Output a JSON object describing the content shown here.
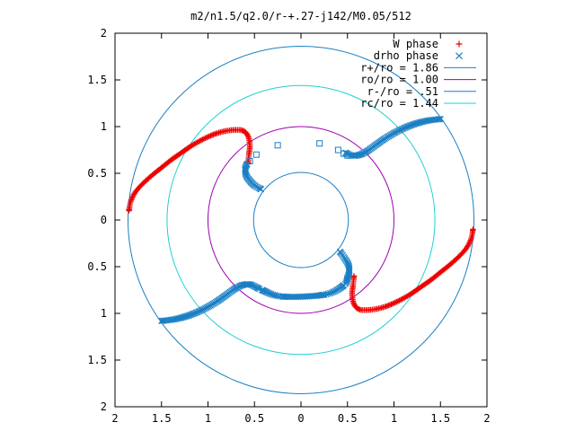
{
  "chart_data": {
    "type": "scatter",
    "title": "m2/n1.5/q2.0/r-+.27-j142/M0.05/512",
    "xlim": [
      -2,
      2
    ],
    "ylim": [
      -2,
      2
    ],
    "x_tick_values": [
      -2,
      -1.5,
      -1,
      -0.5,
      0,
      0.5,
      1,
      1.5,
      2
    ],
    "x_tick_labels": [
      "2",
      "1.5",
      "1",
      "0.5",
      "0",
      "0.5",
      "1",
      "1.5",
      "2"
    ],
    "y_tick_values": [
      2,
      1.5,
      1,
      0.5,
      0,
      -0.5,
      -1,
      -1.5,
      -2
    ],
    "y_tick_labels": [
      "2",
      "1.5",
      "1",
      "0.5",
      "0",
      "0.5",
      "1",
      "1.5",
      "2"
    ],
    "grid": false,
    "legend_position": "top-right",
    "circles": [
      {
        "label": "r+/ro = 1.86",
        "radius": 1.86,
        "color": "#1a7fc4"
      },
      {
        "label": "ro/ro = 1.00",
        "radius": 1.0,
        "color": "#a000b0"
      },
      {
        "label": "r-/ro = .51",
        "radius": 0.51,
        "color": "#1a7fc4"
      },
      {
        "label": "rc/ro = 1.44",
        "radius": 1.44,
        "color": "#20d0d0"
      }
    ],
    "series": [
      {
        "name": "W phase",
        "marker": "+",
        "color": "#ee0000",
        "points": [
          [
            -1.85,
            0.1
          ],
          [
            -1.83,
            0.2
          ],
          [
            -1.78,
            0.3
          ],
          [
            -1.7,
            0.39
          ],
          [
            -1.6,
            0.48
          ],
          [
            -1.5,
            0.56
          ],
          [
            -1.4,
            0.64
          ],
          [
            -1.3,
            0.71
          ],
          [
            -1.2,
            0.78
          ],
          [
            -1.1,
            0.84
          ],
          [
            -1.0,
            0.89
          ],
          [
            -0.9,
            0.93
          ],
          [
            -0.8,
            0.955
          ],
          [
            -0.7,
            0.965
          ],
          [
            -0.62,
            0.955
          ],
          [
            -0.57,
            0.9
          ],
          [
            -0.55,
            0.8
          ],
          [
            -0.56,
            0.7
          ],
          [
            -0.57,
            0.6
          ],
          [
            1.85,
            -0.1
          ],
          [
            1.83,
            -0.2
          ],
          [
            1.78,
            -0.3
          ],
          [
            1.7,
            -0.39
          ],
          [
            1.6,
            -0.48
          ],
          [
            1.5,
            -0.56
          ],
          [
            1.4,
            -0.64
          ],
          [
            1.3,
            -0.71
          ],
          [
            1.2,
            -0.78
          ],
          [
            1.1,
            -0.84
          ],
          [
            1.0,
            -0.89
          ],
          [
            0.9,
            -0.93
          ],
          [
            0.8,
            -0.955
          ],
          [
            0.7,
            -0.965
          ],
          [
            0.62,
            -0.955
          ],
          [
            0.57,
            -0.9
          ],
          [
            0.55,
            -0.8
          ],
          [
            0.56,
            -0.7
          ],
          [
            0.57,
            -0.6
          ]
        ]
      },
      {
        "name": "drho phase",
        "marker": "x",
        "color": "#1a7fc4",
        "points": [
          [
            -1.5,
            -1.08
          ],
          [
            -1.4,
            -1.07
          ],
          [
            -1.3,
            -1.05
          ],
          [
            -1.2,
            -1.02
          ],
          [
            -1.1,
            -0.98
          ],
          [
            -1.0,
            -0.93
          ],
          [
            -0.9,
            -0.87
          ],
          [
            -0.8,
            -0.8
          ],
          [
            -0.7,
            -0.73
          ],
          [
            -0.62,
            -0.695
          ],
          [
            -0.55,
            -0.69
          ],
          [
            -0.48,
            -0.72
          ],
          [
            -0.42,
            -0.75
          ],
          [
            -0.2,
            -0.82
          ],
          [
            0.25,
            -0.8
          ],
          [
            0.46,
            -0.7
          ],
          [
            0.5,
            -0.62
          ],
          [
            0.52,
            -0.55
          ],
          [
            0.51,
            -0.48
          ],
          [
            0.47,
            -0.41
          ],
          [
            0.42,
            -0.34
          ],
          [
            1.5,
            1.08
          ],
          [
            1.4,
            1.07
          ],
          [
            1.3,
            1.05
          ],
          [
            1.2,
            1.02
          ],
          [
            1.1,
            0.98
          ],
          [
            1.0,
            0.93
          ],
          [
            0.9,
            0.87
          ],
          [
            0.8,
            0.8
          ],
          [
            0.7,
            0.73
          ],
          [
            0.62,
            0.695
          ],
          [
            0.55,
            0.69
          ],
          [
            0.48,
            0.72
          ],
          [
            -0.58,
            0.6
          ],
          [
            -0.6,
            0.55
          ],
          [
            -0.59,
            0.48
          ],
          [
            -0.55,
            0.42
          ],
          [
            -0.5,
            0.37
          ],
          [
            -0.43,
            0.33
          ]
        ]
      },
      {
        "name": "",
        "marker": "square",
        "color": "#1a7fc4",
        "points": [
          [
            -0.48,
            0.7
          ],
          [
            -0.25,
            0.8
          ],
          [
            0.2,
            0.82
          ],
          [
            0.4,
            0.75
          ],
          [
            0.46,
            0.71
          ],
          [
            0.5,
            0.69
          ],
          [
            -0.55,
            0.63
          ]
        ]
      }
    ]
  }
}
